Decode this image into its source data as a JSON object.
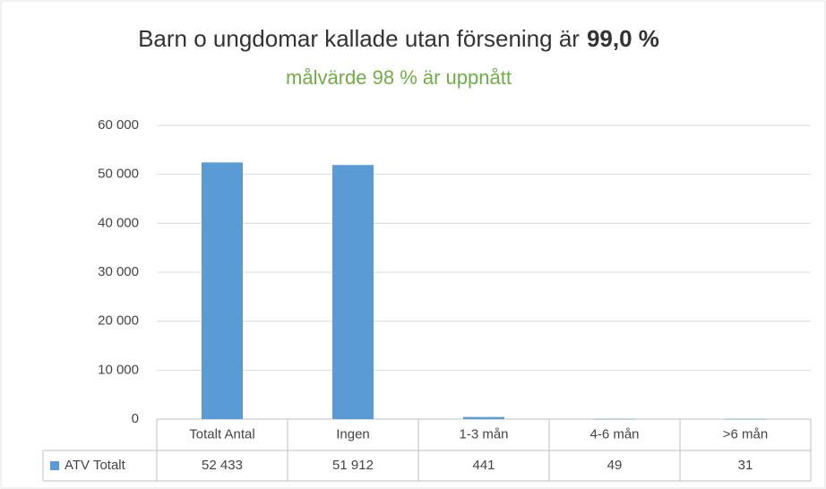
{
  "chart_data": {
    "type": "bar",
    "title": "Barn o ungdomar kallade utan försening är",
    "title_emphasis": "99,0 %",
    "subtitle": "målvärde 98 % är uppnått",
    "categories": [
      "Totalt Antal",
      "Ingen",
      "1-3 mån",
      "4-6 mån",
      ">6 mån"
    ],
    "series": [
      {
        "name": "ATV Totalt",
        "color": "#5b9bd5",
        "values": [
          52433,
          51912,
          441,
          49,
          31
        ],
        "value_labels": [
          "52 433",
          "51 912",
          "441",
          "49",
          "31"
        ]
      }
    ],
    "ylim": [
      0,
      60000
    ],
    "yticks": [
      0,
      {
        "value": 10000,
        "label": "10 000"
      },
      {
        "value": 20000,
        "label": "20 000"
      },
      {
        "value": 30000,
        "label": "30 000"
      },
      {
        "value": 40000,
        "label": "40 000"
      },
      {
        "value": 50000,
        "label": "50 000"
      },
      {
        "value": 60000,
        "label": "60 000"
      }
    ],
    "grid": true
  }
}
